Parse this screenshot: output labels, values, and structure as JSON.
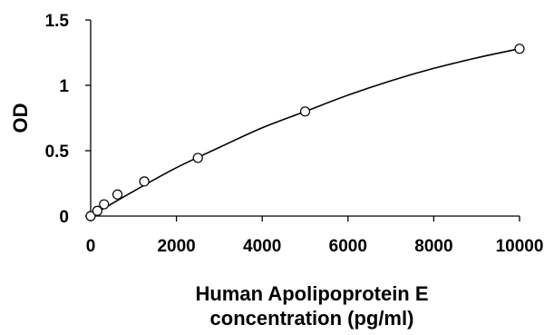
{
  "chart_data": {
    "type": "scatter",
    "title": "",
    "xlabel_lines": [
      "Human Apolipoprotein E",
      "concentration (pg/ml)"
    ],
    "ylabel": "OD",
    "xlim": [
      0,
      10000
    ],
    "ylim": [
      0,
      1.5
    ],
    "x_ticks": [
      0,
      2000,
      4000,
      6000,
      8000,
      10000
    ],
    "y_ticks": [
      0,
      0.5,
      1,
      1.5
    ],
    "x_tick_labels": [
      "0",
      "2000",
      "4000",
      "6000",
      "8000",
      "10000"
    ],
    "y_tick_labels": [
      "0",
      "0.5",
      "1",
      "1.5"
    ],
    "grid": false,
    "legend": "none",
    "series": [
      {
        "marker": "open-circle",
        "color": "#000000",
        "points": [
          {
            "x": 0,
            "y": 0.0
          },
          {
            "x": 156,
            "y": 0.04
          },
          {
            "x": 312,
            "y": 0.09
          },
          {
            "x": 625,
            "y": 0.165
          },
          {
            "x": 1250,
            "y": 0.265
          },
          {
            "x": 2500,
            "y": 0.445
          },
          {
            "x": 5000,
            "y": 0.8
          },
          {
            "x": 10000,
            "y": 1.28
          }
        ]
      }
    ],
    "fit_curve": {
      "color": "#000000",
      "points": [
        {
          "x": 0,
          "y": 0.0
        },
        {
          "x": 1000,
          "y": 0.19
        },
        {
          "x": 2000,
          "y": 0.37
        },
        {
          "x": 3000,
          "y": 0.525
        },
        {
          "x": 4000,
          "y": 0.675
        },
        {
          "x": 5000,
          "y": 0.8
        },
        {
          "x": 6000,
          "y": 0.925
        },
        {
          "x": 7000,
          "y": 1.035
        },
        {
          "x": 8000,
          "y": 1.13
        },
        {
          "x": 9000,
          "y": 1.21
        },
        {
          "x": 10000,
          "y": 1.28
        }
      ]
    }
  }
}
